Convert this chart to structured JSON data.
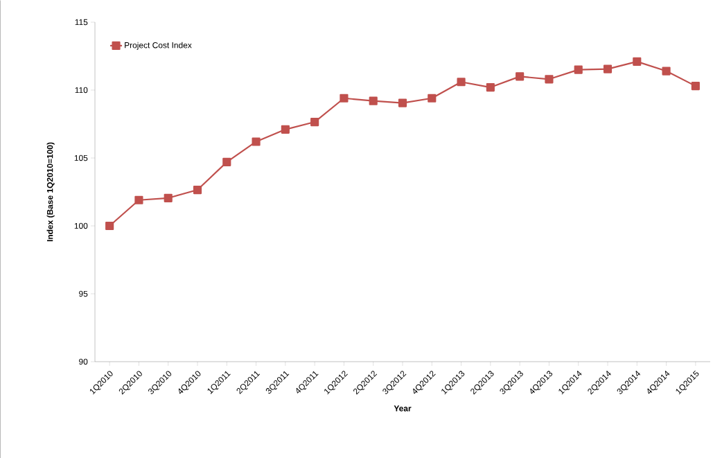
{
  "chart_data": {
    "type": "line",
    "categories": [
      "1Q2010",
      "2Q2010",
      "3Q2010",
      "4Q2010",
      "1Q2011",
      "2Q2011",
      "3Q2011",
      "4Q2011",
      "1Q2012",
      "2Q2012",
      "3Q2012",
      "4Q2012",
      "1Q2013",
      "2Q2013",
      "3Q2013",
      "4Q2013",
      "1Q2014",
      "2Q2014",
      "3Q2014",
      "4Q2014",
      "1Q2015"
    ],
    "series": [
      {
        "name": "Project Cost Index",
        "color": "#c0504d",
        "values": [
          100,
          101.9,
          102.05,
          102.65,
          104.7,
          106.2,
          107.1,
          107.65,
          109.4,
          109.2,
          109.05,
          109.4,
          110.6,
          110.2,
          111.0,
          110.8,
          111.5,
          111.55,
          112.1,
          111.4,
          110.3
        ]
      }
    ],
    "xlabel": "Year",
    "ylabel": "Index (Base 1Q2010=100)",
    "ylim": [
      90,
      115
    ],
    "yticks": [
      90,
      95,
      100,
      105,
      110,
      115
    ],
    "legend": "top left",
    "marker": "square",
    "line_style": "solid"
  }
}
